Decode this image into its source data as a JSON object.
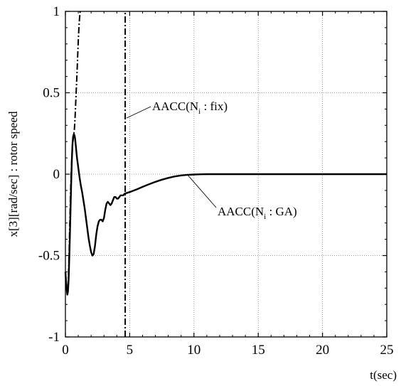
{
  "chart_data": {
    "type": "line",
    "title": "",
    "xlabel": "t(sec)",
    "ylabel": "x[3][rad/sec] : rotor speed",
    "xlim": [
      0,
      25
    ],
    "ylim": [
      -1,
      1
    ],
    "x_ticks": [
      0,
      5,
      10,
      15,
      20,
      25
    ],
    "x_tick_labels": [
      "0",
      "5",
      "10",
      "15",
      "20",
      "25"
    ],
    "y_ticks": [
      -1,
      -0.5,
      0,
      0.5,
      1
    ],
    "y_tick_labels": [
      "-1",
      "-0.5",
      "0",
      "0.5",
      "1"
    ],
    "grid": true,
    "series": [
      {
        "name": "AACC(Ni : GA)",
        "style": "solid",
        "x": [
          0,
          0.05,
          0.1,
          0.15,
          0.2,
          0.25,
          0.3,
          0.35,
          0.4,
          0.45,
          0.5,
          0.55,
          0.6,
          0.65,
          0.7,
          0.75,
          0.8,
          0.9,
          1.0,
          1.1,
          1.2,
          1.3,
          1.4,
          1.5,
          1.6,
          1.7,
          1.8,
          1.9,
          2.0,
          2.1,
          2.2,
          2.3,
          2.4,
          2.5,
          2.6,
          2.7,
          2.8,
          2.9,
          3.0,
          3.1,
          3.2,
          3.3,
          3.4,
          3.5,
          3.6,
          3.7,
          3.8,
          3.9,
          4.0,
          4.1,
          4.2,
          4.3,
          4.4,
          4.5,
          4.6,
          4.8,
          5.0,
          5.5,
          6.0,
          6.5,
          7.0,
          7.5,
          8.0,
          8.5,
          9.0,
          9.5,
          10.0,
          10.5,
          11.0,
          12.0,
          13.0,
          14.0,
          15.0,
          17.5,
          20.0,
          22.5,
          25.0
        ],
        "y": [
          -0.6,
          -0.66,
          -0.71,
          -0.74,
          -0.72,
          -0.65,
          -0.52,
          -0.38,
          -0.22,
          -0.06,
          0.08,
          0.18,
          0.23,
          0.245,
          0.24,
          0.22,
          0.18,
          0.1,
          0.04,
          -0.02,
          -0.07,
          -0.11,
          -0.16,
          -0.21,
          -0.27,
          -0.33,
          -0.39,
          -0.44,
          -0.48,
          -0.5,
          -0.49,
          -0.44,
          -0.37,
          -0.32,
          -0.29,
          -0.28,
          -0.28,
          -0.29,
          -0.27,
          -0.22,
          -0.18,
          -0.17,
          -0.18,
          -0.19,
          -0.18,
          -0.16,
          -0.14,
          -0.14,
          -0.15,
          -0.15,
          -0.14,
          -0.13,
          -0.13,
          -0.13,
          -0.12,
          -0.115,
          -0.11,
          -0.095,
          -0.078,
          -0.062,
          -0.047,
          -0.034,
          -0.023,
          -0.014,
          -0.008,
          -0.004,
          -0.002,
          -0.001,
          0,
          0,
          0,
          0,
          0,
          0,
          0,
          0,
          0
        ]
      },
      {
        "name": "AACC(Ni : fix)",
        "style": "dash-dot",
        "x": [
          0,
          0.05,
          0.1,
          0.15,
          0.2,
          0.25,
          0.3,
          0.35,
          0.4,
          0.45,
          0.5,
          0.55,
          0.6,
          0.65,
          0.7,
          0.75,
          0.8,
          0.85,
          0.9,
          0.95,
          1.0,
          1.05,
          1.1,
          1.15
        ],
        "y": [
          -0.6,
          -0.66,
          -0.7,
          -0.72,
          -0.7,
          -0.6,
          -0.45,
          -0.28,
          -0.12,
          0.0,
          0.1,
          0.17,
          0.21,
          0.24,
          0.28,
          0.35,
          0.44,
          0.53,
          0.62,
          0.72,
          0.82,
          0.9,
          0.96,
          1.0
        ]
      },
      {
        "name": "AACC(Ni : fix)",
        "style": "dash-dot",
        "x": [
          4.65,
          4.65
        ],
        "y": [
          -1,
          1
        ]
      }
    ],
    "annotations": [
      {
        "label": "AACC(N",
        "subscript": "i",
        "rest": " : fix)",
        "target_series": 1
      },
      {
        "label": "AACC(N",
        "subscript": "i",
        "rest": " : GA)",
        "target_series": 0
      }
    ]
  }
}
